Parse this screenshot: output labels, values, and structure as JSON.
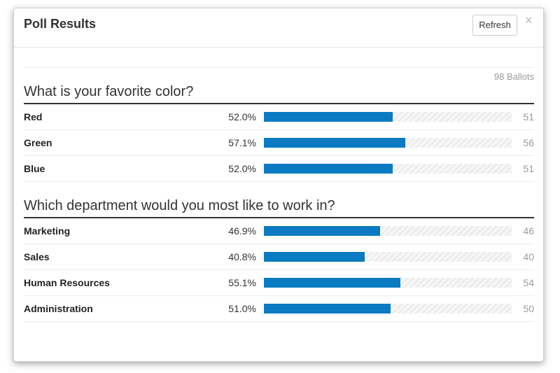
{
  "modal": {
    "title": "Poll Results",
    "refresh_label": "Refresh",
    "close_label": "×"
  },
  "ballots_label": "98 Ballots",
  "colors": {
    "bar": "#0a7bc2"
  },
  "questions": [
    {
      "title": "What is your favorite color?",
      "options": [
        {
          "label": "Red",
          "percent": "52.0%",
          "count": "51",
          "fraction": 0.52
        },
        {
          "label": "Green",
          "percent": "57.1%",
          "count": "56",
          "fraction": 0.571
        },
        {
          "label": "Blue",
          "percent": "52.0%",
          "count": "51",
          "fraction": 0.52
        }
      ]
    },
    {
      "title": "Which department would you most like to work in?",
      "options": [
        {
          "label": "Marketing",
          "percent": "46.9%",
          "count": "46",
          "fraction": 0.469
        },
        {
          "label": "Sales",
          "percent": "40.8%",
          "count": "40",
          "fraction": 0.408
        },
        {
          "label": "Human Resources",
          "percent": "55.1%",
          "count": "54",
          "fraction": 0.551
        },
        {
          "label": "Administration",
          "percent": "51.0%",
          "count": "50",
          "fraction": 0.51
        }
      ]
    }
  ]
}
